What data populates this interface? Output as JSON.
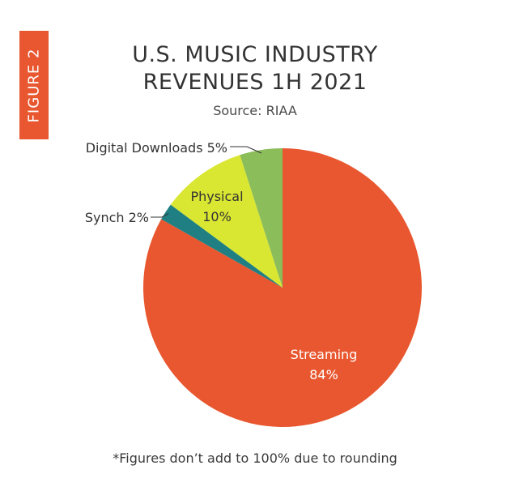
{
  "figure_label": "FIGURE 2",
  "chart_data": {
    "type": "pie",
    "title_lines": [
      "U.S. MUSIC INDUSTRY",
      "REVENUES 1H 2021"
    ],
    "subtitle": "Source: RIAA",
    "footnote": "*Figures don’t add to 100% due to rounding",
    "slices": [
      {
        "name": "Streaming",
        "value": 84,
        "label": "84%",
        "color": "#e8572f"
      },
      {
        "name": "Synch",
        "value": 2,
        "label": "2%",
        "color": "#1f7f82"
      },
      {
        "name": "Physical",
        "value": 10,
        "label": "10%",
        "color": "#d9e632"
      },
      {
        "name": "Digital Downloads",
        "value": 5,
        "label": "5%",
        "color": "#8bbd5a"
      }
    ]
  }
}
